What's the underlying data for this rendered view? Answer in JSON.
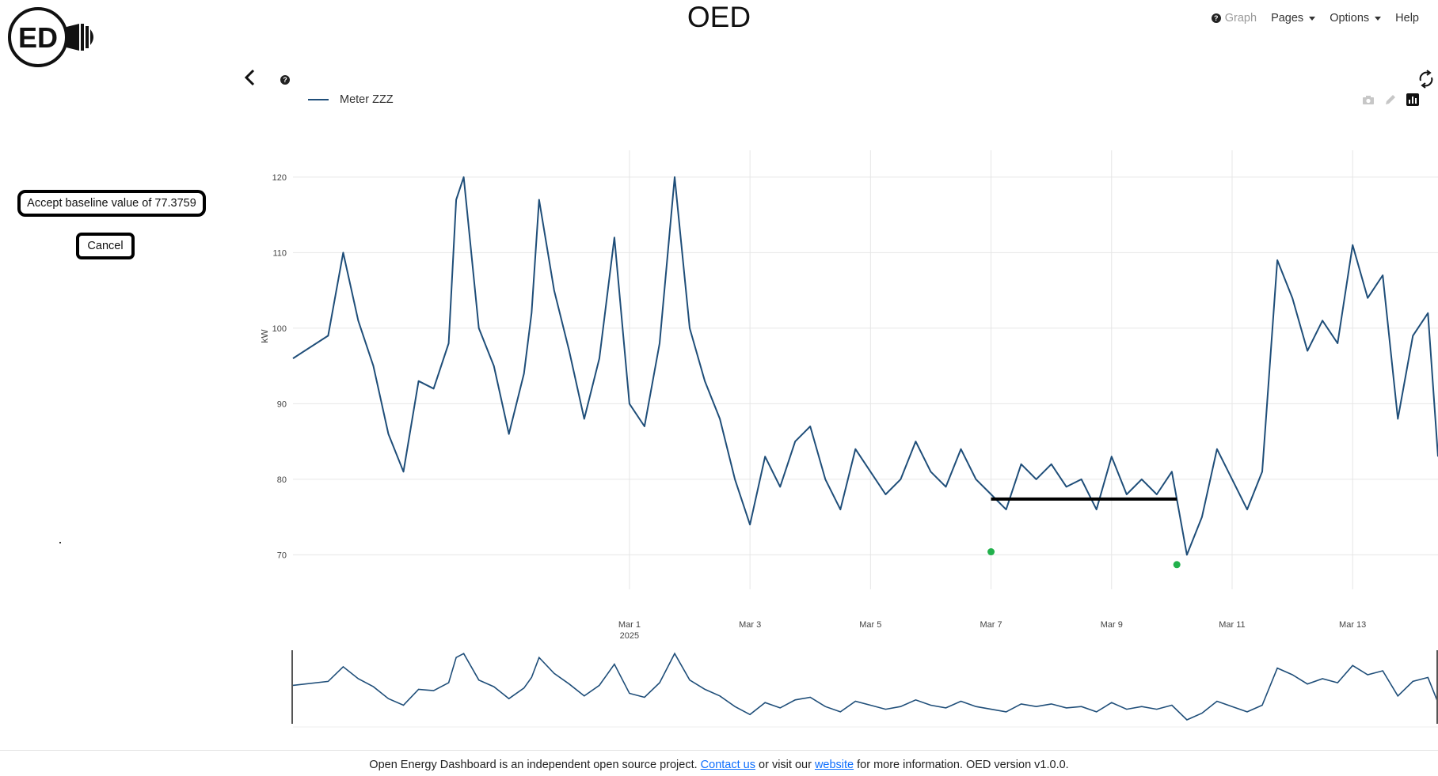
{
  "header": {
    "title": "OED",
    "logo_text": "ED",
    "nav": {
      "graph": "Graph",
      "pages": "Pages",
      "options": "Options",
      "help": "Help"
    }
  },
  "legend": {
    "series_name": "Meter ZZZ",
    "color": "#1f4e79"
  },
  "baseline": {
    "accept_label": "Accept baseline value of 77.3759",
    "cancel_label": "Cancel",
    "value": 77.3759
  },
  "icons": {
    "back": "chevron-left-icon",
    "help": "question-circle-icon",
    "refresh": "refresh-icon",
    "camera": "camera-icon",
    "pencil": "pencil-icon",
    "chart_logo": "plotly-logo-icon"
  },
  "chart_data": {
    "type": "line",
    "ylabel": "kW",
    "ylim": [
      67,
      122.5
    ],
    "yticks": [
      70,
      80,
      90,
      100,
      110,
      120
    ],
    "x_range": [
      "2025-02-23T10:00",
      "2025-03-14T10:00"
    ],
    "xticks": [
      "Mar 1",
      "Mar 3",
      "Mar 5",
      "Mar 7",
      "Mar 9",
      "Mar 11",
      "Mar 13"
    ],
    "xtick_year": "2025",
    "grid": true,
    "range_slider": true,
    "series": [
      {
        "name": "Meter ZZZ",
        "color": "#1f4e79",
        "x": [
          "2025-02-23T10:00",
          "2025-02-24T00:00",
          "2025-02-24T06:00",
          "2025-02-24T12:00",
          "2025-02-24T18:00",
          "2025-02-25T00:00",
          "2025-02-25T06:00",
          "2025-02-25T12:00",
          "2025-02-25T18:00",
          "2025-02-26T00:00",
          "2025-02-26T03:00",
          "2025-02-26T06:00",
          "2025-02-26T12:00",
          "2025-02-26T18:00",
          "2025-02-27T00:00",
          "2025-02-27T06:00",
          "2025-02-27T09:00",
          "2025-02-27T12:00",
          "2025-02-27T18:00",
          "2025-02-28T00:00",
          "2025-02-28T06:00",
          "2025-02-28T12:00",
          "2025-02-28T18:00",
          "2025-03-01T00:00",
          "2025-03-01T06:00",
          "2025-03-01T12:00",
          "2025-03-01T18:00",
          "2025-03-02T00:00",
          "2025-03-02T06:00",
          "2025-03-02T12:00",
          "2025-03-02T18:00",
          "2025-03-03T00:00",
          "2025-03-03T06:00",
          "2025-03-03T12:00",
          "2025-03-03T18:00",
          "2025-03-04T00:00",
          "2025-03-04T06:00",
          "2025-03-04T12:00",
          "2025-03-04T18:00",
          "2025-03-05T00:00",
          "2025-03-05T06:00",
          "2025-03-05T12:00",
          "2025-03-05T18:00",
          "2025-03-06T00:00",
          "2025-03-06T06:00",
          "2025-03-06T12:00",
          "2025-03-06T18:00",
          "2025-03-07T00:00",
          "2025-03-07T06:00",
          "2025-03-07T12:00",
          "2025-03-07T18:00",
          "2025-03-08T00:00",
          "2025-03-08T06:00",
          "2025-03-08T12:00",
          "2025-03-08T18:00",
          "2025-03-09T00:00",
          "2025-03-09T06:00",
          "2025-03-09T12:00",
          "2025-03-09T18:00",
          "2025-03-10T00:00",
          "2025-03-10T06:00",
          "2025-03-10T12:00",
          "2025-03-10T18:00",
          "2025-03-11T00:00",
          "2025-03-11T06:00",
          "2025-03-11T12:00",
          "2025-03-11T18:00",
          "2025-03-12T00:00",
          "2025-03-12T06:00",
          "2025-03-12T12:00",
          "2025-03-12T18:00",
          "2025-03-13T00:00",
          "2025-03-13T06:00",
          "2025-03-13T12:00",
          "2025-03-13T18:00",
          "2025-03-14T00:00",
          "2025-03-14T06:00",
          "2025-03-14T10:00"
        ],
        "y": [
          96,
          99,
          110,
          101,
          95,
          86,
          81,
          93,
          92,
          98,
          117,
          120,
          100,
          95,
          86,
          94,
          102,
          117,
          105,
          97,
          88,
          96,
          112,
          90,
          87,
          98,
          120,
          100,
          93,
          88,
          80,
          74,
          83,
          79,
          85,
          87,
          80,
          76,
          84,
          81,
          78,
          80,
          85,
          81,
          79,
          84,
          80,
          78,
          76,
          82,
          80,
          82,
          79,
          80,
          76,
          83,
          78,
          80,
          78,
          81,
          70,
          75,
          84,
          80,
          76,
          81,
          109,
          104,
          97,
          101,
          98,
          111,
          104,
          107,
          88,
          99,
          102,
          83
        ]
      }
    ],
    "baseline_segment": {
      "x_start": "2025-03-07T00:00",
      "x_end": "2025-03-10T02:00",
      "y": 77.3759
    },
    "markers": [
      {
        "x": "2025-03-07T00:00",
        "y": 70.4,
        "color": "#22b14c"
      },
      {
        "x": "2025-03-10T02:00",
        "y": 68.7,
        "color": "#22b14c"
      }
    ]
  },
  "footer": {
    "prefix": "Open Energy Dashboard is an independent open source project. ",
    "contact_link": "Contact us",
    "middle": " or visit our ",
    "website_link": "website",
    "suffix": " for more information. OED version v1.0.0."
  }
}
